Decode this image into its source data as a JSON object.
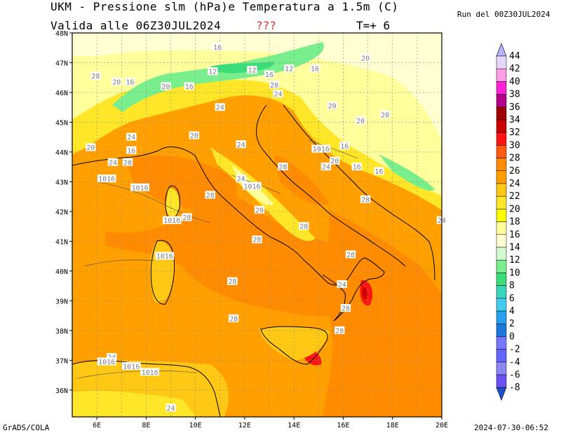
{
  "header": {
    "title_line1": "UKM - Pressione slm (hPa)e Temperatura a 1.5m (C)",
    "title_line2": "Valida alle 06Z30JUL2024",
    "unknown_marker": "???",
    "time_step": "T=+ 6",
    "run_label": "Run del 00Z30JUL2024"
  },
  "footer": {
    "software": "GrADS/COLA",
    "timestamp": "2024-07-30-06:52"
  },
  "map": {
    "lat_ticks": [
      "48N",
      "47N",
      "46N",
      "45N",
      "44N",
      "43N",
      "42N",
      "41N",
      "40N",
      "39N",
      "38N",
      "37N",
      "36N"
    ],
    "lon_ticks": [
      "6E",
      "8E",
      "10E",
      "12E",
      "14E",
      "16E",
      "18E",
      "20E"
    ],
    "contour_labels": [
      {
        "text": "16",
        "lon": 10.9,
        "lat": 47.52
      },
      {
        "text": "12",
        "lon": 10.7,
        "lat": 46.7
      },
      {
        "text": "12",
        "lon": 12.3,
        "lat": 46.75
      },
      {
        "text": "16",
        "lon": 13.0,
        "lat": 46.6
      },
      {
        "text": "12",
        "lon": 13.8,
        "lat": 46.8
      },
      {
        "text": "16",
        "lon": 14.85,
        "lat": 46.8
      },
      {
        "text": "20",
        "lon": 16.9,
        "lat": 47.15
      },
      {
        "text": "28",
        "lon": 5.95,
        "lat": 46.55
      },
      {
        "text": "20",
        "lon": 6.8,
        "lat": 46.35
      },
      {
        "text": "16",
        "lon": 7.35,
        "lat": 46.35
      },
      {
        "text": "20",
        "lon": 8.8,
        "lat": 46.2
      },
      {
        "text": "16",
        "lon": 9.75,
        "lat": 46.2
      },
      {
        "text": "20",
        "lon": 13.2,
        "lat": 46.25
      },
      {
        "text": "24",
        "lon": 13.35,
        "lat": 45.95
      },
      {
        "text": "24",
        "lon": 11.0,
        "lat": 45.5
      },
      {
        "text": "20",
        "lon": 15.55,
        "lat": 45.55
      },
      {
        "text": "20",
        "lon": 16.7,
        "lat": 45.05
      },
      {
        "text": "20",
        "lon": 17.7,
        "lat": 45.25
      },
      {
        "text": "24",
        "lon": 7.4,
        "lat": 44.5
      },
      {
        "text": "20",
        "lon": 9.95,
        "lat": 44.55
      },
      {
        "text": "20",
        "lon": 5.75,
        "lat": 44.15
      },
      {
        "text": "16",
        "lon": 7.4,
        "lat": 44.05
      },
      {
        "text": "24",
        "lon": 11.85,
        "lat": 44.25
      },
      {
        "text": "1016",
        "lon": 15.1,
        "lat": 44.1
      },
      {
        "text": "16",
        "lon": 16.05,
        "lat": 44.2
      },
      {
        "text": "24",
        "lon": 6.65,
        "lat": 43.65
      },
      {
        "text": "28",
        "lon": 7.25,
        "lat": 43.65
      },
      {
        "text": "20",
        "lon": 15.65,
        "lat": 43.7
      },
      {
        "text": "16",
        "lon": 16.55,
        "lat": 43.5
      },
      {
        "text": "16",
        "lon": 17.45,
        "lat": 43.35
      },
      {
        "text": "24",
        "lon": 15.3,
        "lat": 43.5
      },
      {
        "text": "28",
        "lon": 13.55,
        "lat": 43.5
      },
      {
        "text": "1016",
        "lon": 6.4,
        "lat": 43.1
      },
      {
        "text": "1016",
        "lon": 7.75,
        "lat": 42.8
      },
      {
        "text": "24",
        "lon": 11.85,
        "lat": 43.1
      },
      {
        "text": "1016",
        "lon": 12.3,
        "lat": 42.85
      },
      {
        "text": "28",
        "lon": 10.6,
        "lat": 42.55
      },
      {
        "text": "28",
        "lon": 16.9,
        "lat": 42.4
      },
      {
        "text": "20",
        "lon": 12.6,
        "lat": 42.05
      },
      {
        "text": "28",
        "lon": 9.65,
        "lat": 41.8
      },
      {
        "text": "1016",
        "lon": 9.05,
        "lat": 41.7
      },
      {
        "text": "28",
        "lon": 14.4,
        "lat": 41.5
      },
      {
        "text": "24",
        "lon": 20.0,
        "lat": 41.7
      },
      {
        "text": "28",
        "lon": 12.5,
        "lat": 41.05
      },
      {
        "text": "1016",
        "lon": 8.75,
        "lat": 40.5
      },
      {
        "text": "28",
        "lon": 16.3,
        "lat": 40.55
      },
      {
        "text": "28",
        "lon": 11.5,
        "lat": 39.65
      },
      {
        "text": "24",
        "lon": 15.95,
        "lat": 39.55
      },
      {
        "text": "28",
        "lon": 16.1,
        "lat": 38.75
      },
      {
        "text": "28",
        "lon": 11.55,
        "lat": 38.4
      },
      {
        "text": "28",
        "lon": 15.85,
        "lat": 38.0
      },
      {
        "text": "24",
        "lon": 6.6,
        "lat": 37.1
      },
      {
        "text": "1016",
        "lon": 6.4,
        "lat": 36.95
      },
      {
        "text": "1016",
        "lon": 7.4,
        "lat": 36.8
      },
      {
        "text": "1016",
        "lon": 8.15,
        "lat": 36.6
      },
      {
        "text": "24",
        "lon": 9.0,
        "lat": 35.4
      }
    ]
  },
  "colorbar": {
    "levels": [
      "44",
      "42",
      "40",
      "38",
      "36",
      "34",
      "32",
      "30",
      "28",
      "26",
      "24",
      "22",
      "20",
      "18",
      "16",
      "14",
      "12",
      "10",
      "8",
      "6",
      "4",
      "2",
      "0",
      "-2",
      "-4",
      "-6",
      "-8"
    ],
    "colors": [
      "#e6d6fa",
      "#ff9ee6",
      "#ff22d6",
      "#b4008c",
      "#a00000",
      "#c80000",
      "#ff1414",
      "#ff5a14",
      "#ff8c00",
      "#ffa000",
      "#ffc814",
      "#ffe628",
      "#ffff00",
      "#ffff9c",
      "#ffffd2",
      "#d2fad2",
      "#78ee8c",
      "#3cdc78",
      "#38d6ba",
      "#44ccee",
      "#28a0f0",
      "#1e78dc",
      "#7878ff",
      "#6464ff",
      "#8888f0",
      "#6a50ee",
      "#6440e6"
    ],
    "top_arrow_color": "#b4b4ff",
    "bottom_arrow_color": "#1e50c8"
  }
}
